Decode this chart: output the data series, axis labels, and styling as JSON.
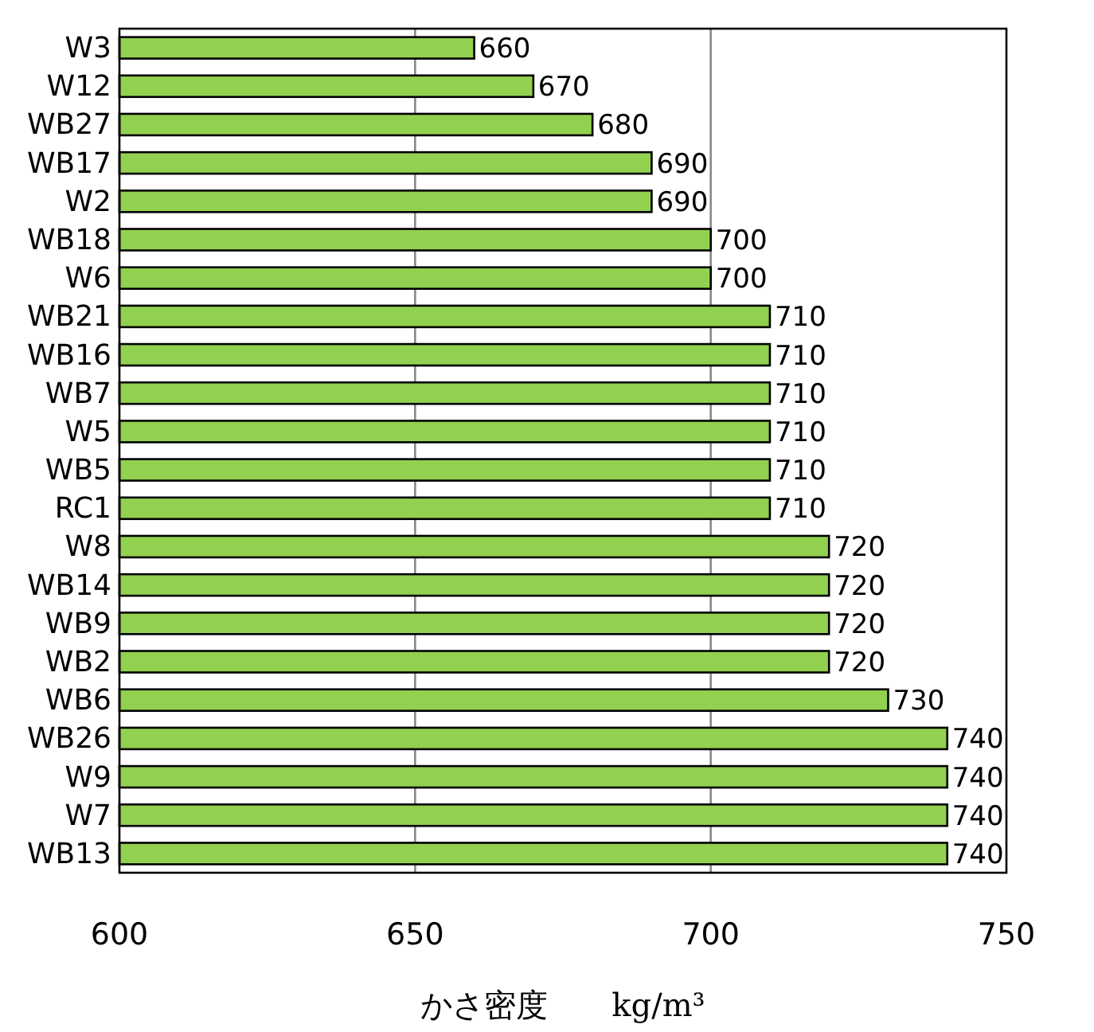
{
  "chart_data": {
    "type": "bar",
    "orientation": "horizontal",
    "categories": [
      "W3",
      "W12",
      "WB27",
      "WB17",
      "W2",
      "WB18",
      "W6",
      "WB21",
      "WB16",
      "WB7",
      "W5",
      "WB5",
      "RC1",
      "W8",
      "WB14",
      "WB9",
      "WB2",
      "WB6",
      "WB26",
      "W9",
      "W7",
      "WB13"
    ],
    "values": [
      660,
      670,
      680,
      690,
      690,
      700,
      700,
      710,
      710,
      710,
      710,
      710,
      710,
      720,
      720,
      720,
      720,
      730,
      740,
      740,
      740,
      740
    ],
    "color": "#92d050",
    "xlim": [
      600,
      750
    ],
    "xticks": [
      600,
      650,
      700,
      750
    ],
    "xlabel": "かさ密度　　kg/m³",
    "grid": "x",
    "data_labels": true
  }
}
